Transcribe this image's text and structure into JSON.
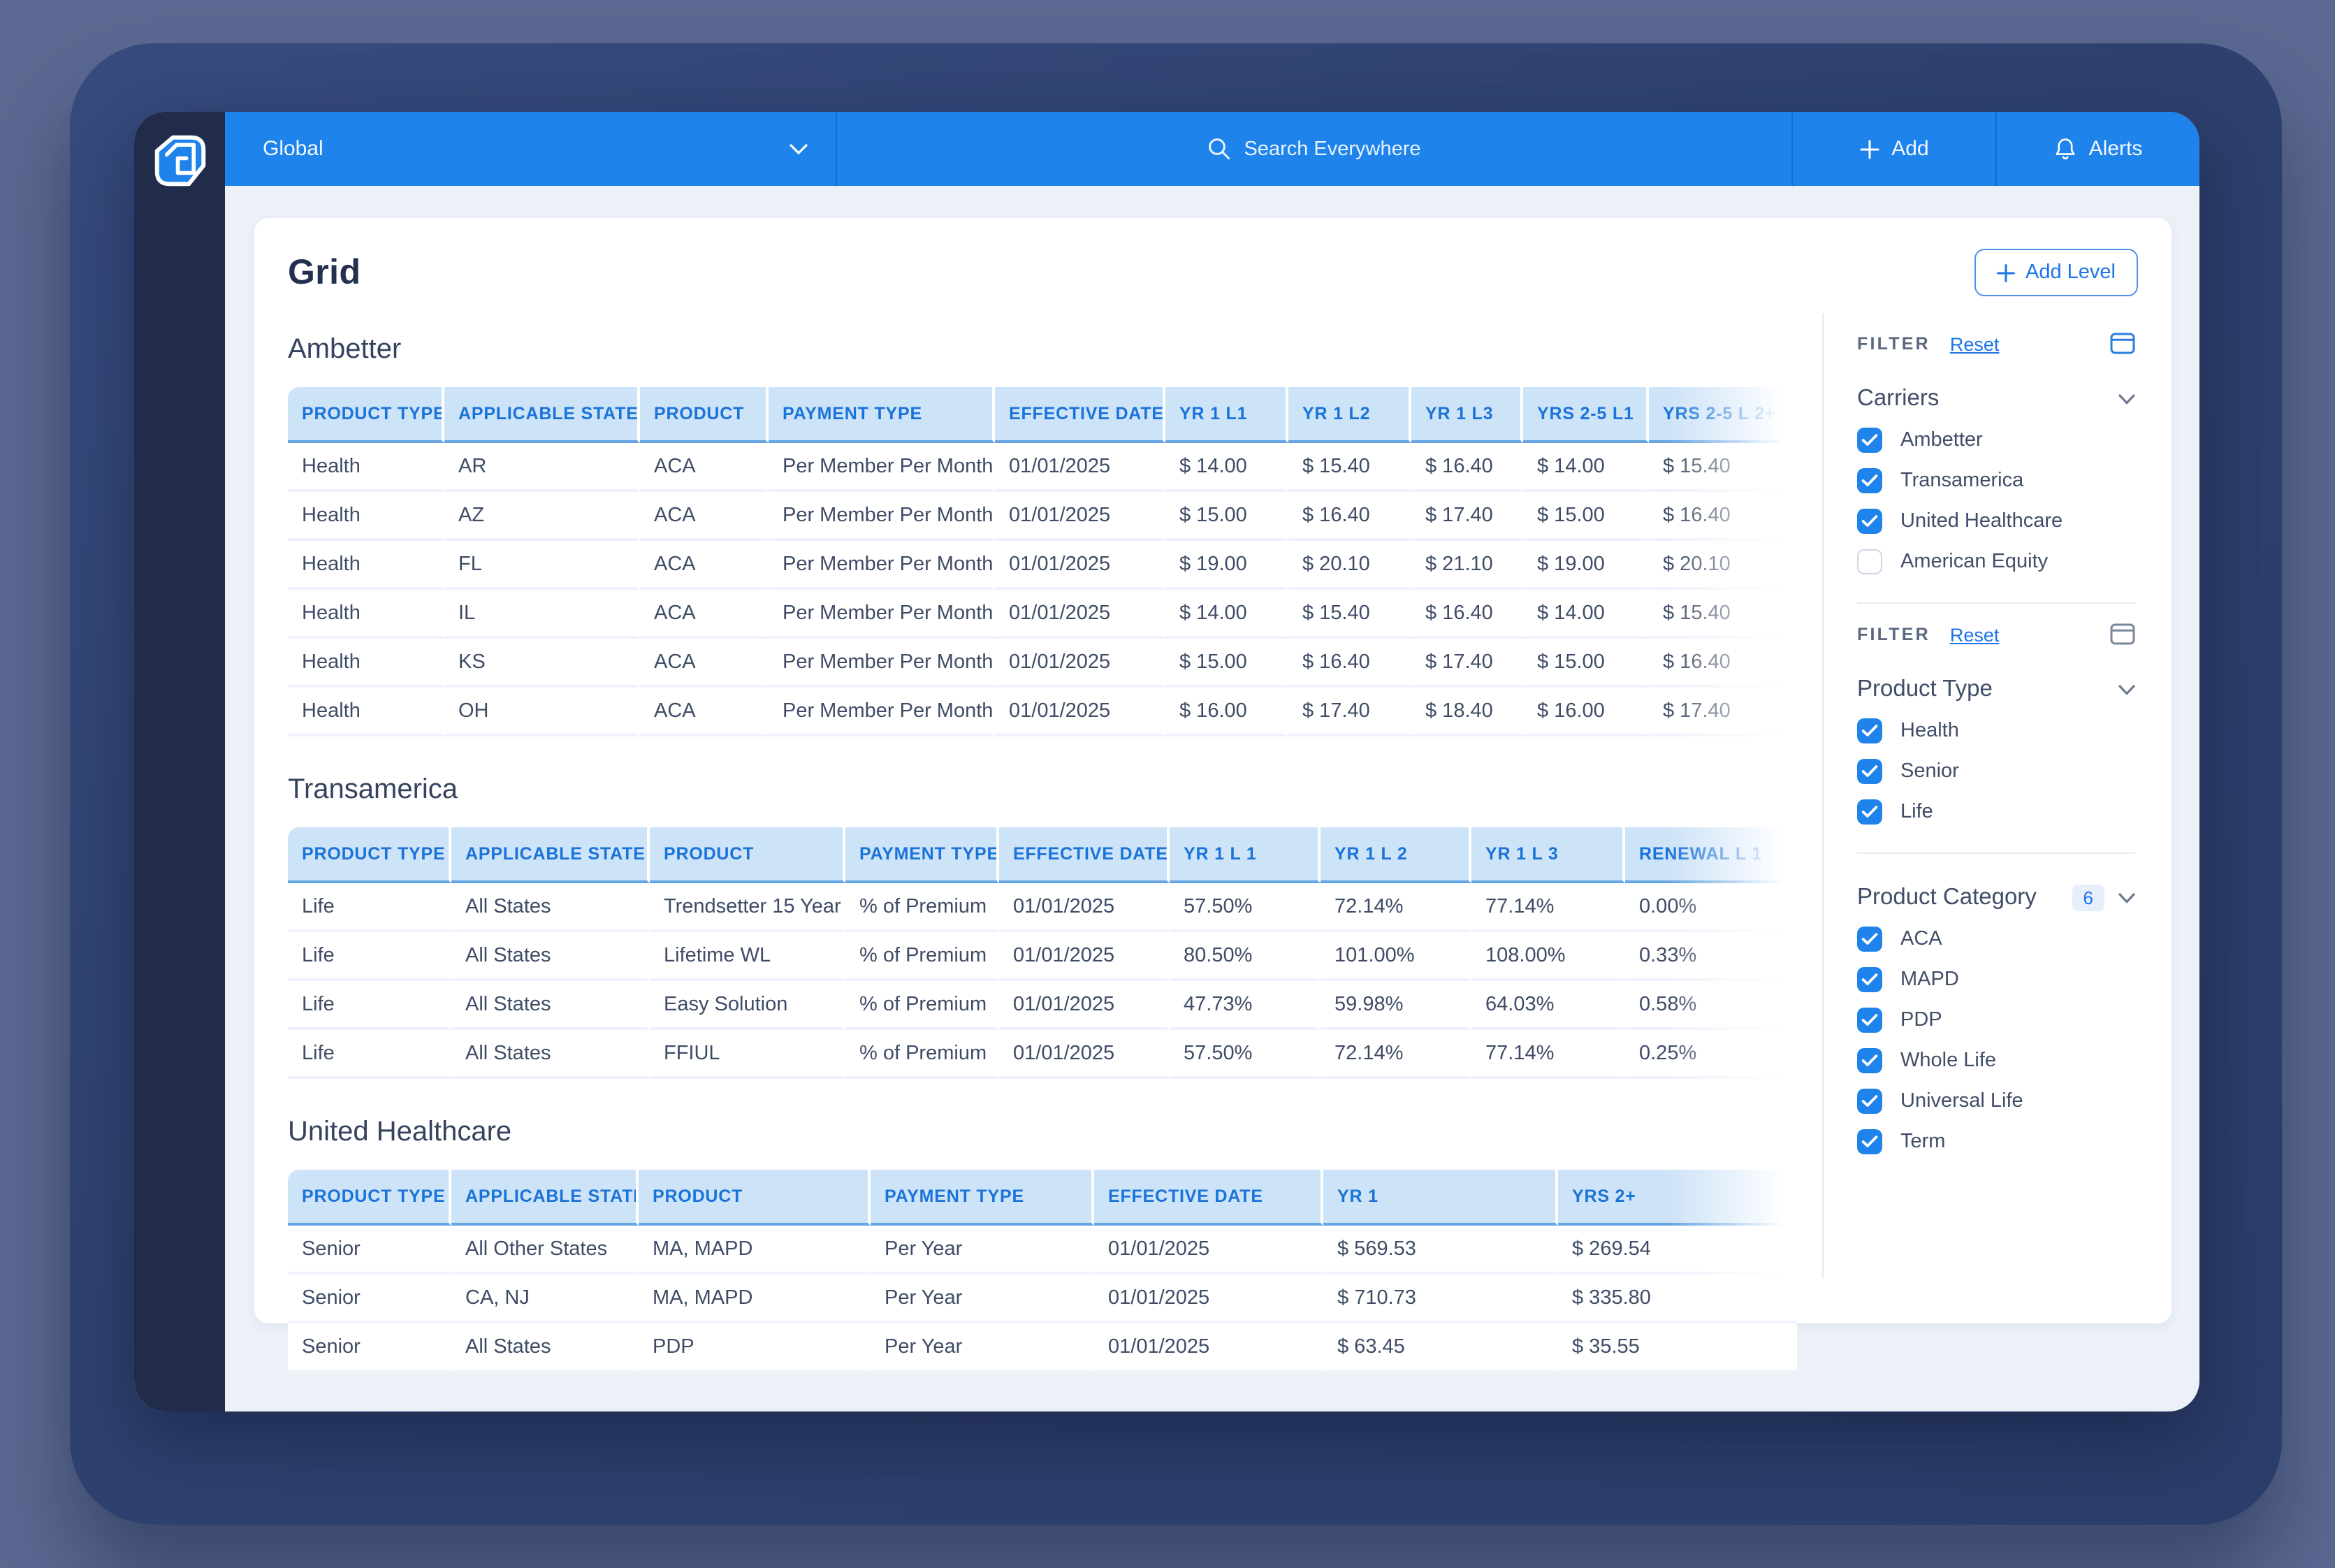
{
  "meta": {
    "accent_color": "#1e83ea",
    "table_header_bg": "#cde3f8",
    "table_header_text": "#1a73d9",
    "sidebar_color": "#202c4a"
  },
  "topbar": {
    "context_label": "Global",
    "search_placeholder": "Search Everywhere",
    "add_label": "Add",
    "alerts_label": "Alerts"
  },
  "page": {
    "title": "Grid",
    "add_level_label": "Add Level"
  },
  "tables": [
    {
      "title": "Ambetter",
      "columns": [
        "PRODUCT TYPE",
        "APPLICABLE STATE",
        "PRODUCT",
        "PAYMENT TYPE",
        "EFFECTIVE DATE",
        "YR 1 L1",
        "YR 1 L2",
        "YR 1 L3",
        "YRS 2-5 L1",
        "YRS 2-5 L 2+"
      ],
      "rows": [
        [
          "Health",
          "AR",
          "ACA",
          "Per Member Per Month",
          "01/01/2025",
          "$ 14.00",
          "$ 15.40",
          "$ 16.40",
          "$ 14.00",
          "$ 15.40"
        ],
        [
          "Health",
          "AZ",
          "ACA",
          "Per Member Per Month",
          "01/01/2025",
          "$ 15.00",
          "$ 16.40",
          "$ 17.40",
          "$ 15.00",
          "$ 16.40"
        ],
        [
          "Health",
          "FL",
          "ACA",
          "Per Member Per Month",
          "01/01/2025",
          "$ 19.00",
          "$ 20.10",
          "$ 21.10",
          "$ 19.00",
          "$ 20.10"
        ],
        [
          "Health",
          "IL",
          "ACA",
          "Per Member Per Month",
          "01/01/2025",
          "$ 14.00",
          "$ 15.40",
          "$ 16.40",
          "$ 14.00",
          "$ 15.40"
        ],
        [
          "Health",
          "KS",
          "ACA",
          "Per Member Per Month",
          "01/01/2025",
          "$ 15.00",
          "$ 16.40",
          "$ 17.40",
          "$ 15.00",
          "$ 16.40"
        ],
        [
          "Health",
          "OH",
          "ACA",
          "Per Member Per Month",
          "01/01/2025",
          "$ 16.00",
          "$ 17.40",
          "$ 18.40",
          "$ 16.00",
          "$ 17.40"
        ]
      ]
    },
    {
      "title": "Transamerica",
      "columns": [
        "PRODUCT TYPE",
        "APPLICABLE STATE",
        "PRODUCT",
        "PAYMENT TYPE",
        "EFFECTIVE DATE",
        "YR 1 L 1",
        "YR 1 L 2",
        "YR 1 L 3",
        "RENEWAL L 1"
      ],
      "rows": [
        [
          "Life",
          "All States",
          "Trendsetter 15 Year",
          "% of Premium",
          "01/01/2025",
          "57.50%",
          "72.14%",
          "77.14%",
          "0.00%"
        ],
        [
          "Life",
          "All States",
          "Lifetime WL",
          "% of Premium",
          "01/01/2025",
          "80.50%",
          "101.00%",
          "108.00%",
          "0.33%"
        ],
        [
          "Life",
          "All States",
          "Easy Solution",
          "% of Premium",
          "01/01/2025",
          "47.73%",
          "59.98%",
          "64.03%",
          "0.58%"
        ],
        [
          "Life",
          "All States",
          "FFIUL",
          "% of Premium",
          "01/01/2025",
          "57.50%",
          "72.14%",
          "77.14%",
          "0.25%"
        ]
      ]
    },
    {
      "title": "United Healthcare",
      "columns": [
        "PRODUCT TYPE",
        "APPLICABLE STATE",
        "PRODUCT",
        "PAYMENT TYPE",
        "EFFECTIVE DATE",
        "YR 1",
        "YRS 2+"
      ],
      "rows": [
        [
          "Senior",
          "All Other States",
          "MA, MAPD",
          "Per Year",
          "01/01/2025",
          "$ 569.53",
          "$ 269.54"
        ],
        [
          "Senior",
          "CA, NJ",
          "MA, MAPD",
          "Per Year",
          "01/01/2025",
          "$ 710.73",
          "$ 335.80"
        ],
        [
          "Senior",
          "All States",
          "PDP",
          "Per Year",
          "01/01/2025",
          "$ 63.45",
          "$ 35.55"
        ]
      ]
    }
  ],
  "filter_blocks": [
    {
      "header": "FILTER",
      "reset_label": "Reset",
      "panel_icon": "panel-icon-blue",
      "sections": [
        {
          "title": "Carriers",
          "options": [
            {
              "label": "Ambetter",
              "checked": true
            },
            {
              "label": "Transamerica",
              "checked": true
            },
            {
              "label": "United Healthcare",
              "checked": true
            },
            {
              "label": "American Equity",
              "checked": false
            }
          ]
        }
      ]
    },
    {
      "header": "FILTER",
      "reset_label": "Reset",
      "panel_icon": "panel-icon-gray",
      "sections": [
        {
          "title": "Product Type",
          "options": [
            {
              "label": "Health",
              "checked": true
            },
            {
              "label": "Senior",
              "checked": true
            },
            {
              "label": "Life",
              "checked": true
            }
          ]
        },
        {
          "title": "Product Category",
          "badge": "6",
          "options": [
            {
              "label": "ACA",
              "checked": true
            },
            {
              "label": "MAPD",
              "checked": true
            },
            {
              "label": "PDP",
              "checked": true
            },
            {
              "label": "Whole Life",
              "checked": true
            },
            {
              "label": "Universal Life",
              "checked": true
            },
            {
              "label": "Term",
              "checked": true
            }
          ]
        }
      ]
    }
  ]
}
